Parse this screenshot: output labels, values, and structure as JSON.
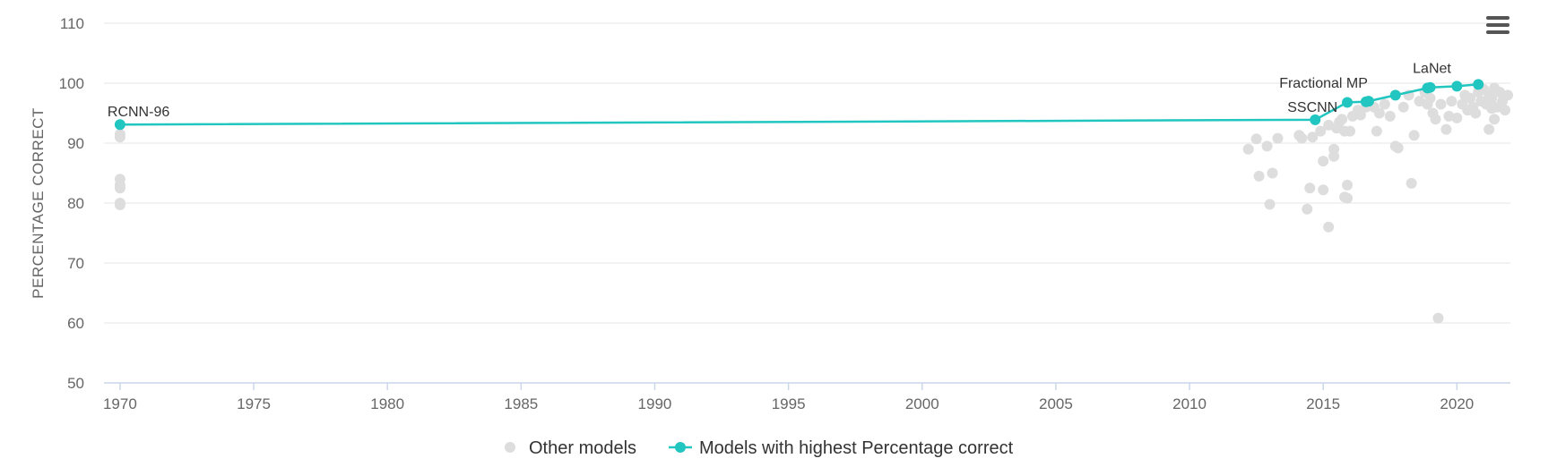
{
  "chart_data": {
    "type": "scatter",
    "xlabel": "",
    "ylabel": "PERCENTAGE CORRECT",
    "xlim": [
      1969.4,
      2022
    ],
    "ylim": [
      50,
      110
    ],
    "x_ticks": [
      "1970",
      "1975",
      "1980",
      "1985",
      "1990",
      "1995",
      "2000",
      "2005",
      "2010",
      "2015",
      "2020"
    ],
    "y_ticks": [
      "50",
      "60",
      "70",
      "80",
      "90",
      "100",
      "110"
    ],
    "grid": true,
    "legend_position": "bottom-center",
    "colors": {
      "other": "#dddddd",
      "best": "#20c6bf"
    },
    "series": [
      {
        "name": "Other models",
        "points": [
          [
            1970,
            91.5
          ],
          [
            1970,
            91
          ],
          [
            1970,
            84
          ],
          [
            1970,
            83
          ],
          [
            1970,
            82.5
          ],
          [
            1970,
            80
          ],
          [
            1970,
            79.7
          ],
          [
            2012.2,
            89
          ],
          [
            2012.5,
            90.7
          ],
          [
            2012.6,
            84.5
          ],
          [
            2012.9,
            89.5
          ],
          [
            2013.0,
            79.8
          ],
          [
            2013.1,
            85
          ],
          [
            2013.3,
            90.8
          ],
          [
            2014.1,
            91.3
          ],
          [
            2014.2,
            90.8
          ],
          [
            2014.4,
            79
          ],
          [
            2014.5,
            82.5
          ],
          [
            2014.6,
            91
          ],
          [
            2014.9,
            92
          ],
          [
            2015.0,
            87
          ],
          [
            2015.0,
            82.2
          ],
          [
            2015.2,
            93
          ],
          [
            2015.2,
            76
          ],
          [
            2015.4,
            89
          ],
          [
            2015.4,
            87.8
          ],
          [
            2015.5,
            92.5
          ],
          [
            2015.6,
            93.5
          ],
          [
            2015.7,
            94
          ],
          [
            2015.8,
            92
          ],
          [
            2015.8,
            81
          ],
          [
            2015.9,
            83
          ],
          [
            2015.9,
            80.8
          ],
          [
            2016.0,
            92
          ],
          [
            2016.1,
            94.5
          ],
          [
            2016.3,
            95.5
          ],
          [
            2016.4,
            94.7
          ],
          [
            2016.6,
            96
          ],
          [
            2016.9,
            96
          ],
          [
            2017.0,
            92
          ],
          [
            2017.1,
            95
          ],
          [
            2017.3,
            96.5
          ],
          [
            2017.5,
            94.5
          ],
          [
            2017.7,
            89.5
          ],
          [
            2017.8,
            89.2
          ],
          [
            2018.0,
            96
          ],
          [
            2018.2,
            98
          ],
          [
            2018.3,
            83.3
          ],
          [
            2018.4,
            91.3
          ],
          [
            2018.6,
            97
          ],
          [
            2018.8,
            98.5
          ],
          [
            2018.9,
            96.5
          ],
          [
            2019.0,
            97.5
          ],
          [
            2019.1,
            95
          ],
          [
            2019.2,
            94
          ],
          [
            2019.3,
            60.8
          ],
          [
            2019.4,
            96.5
          ],
          [
            2019.6,
            92.3
          ],
          [
            2019.7,
            94.5
          ],
          [
            2019.8,
            97
          ],
          [
            2020.0,
            94.2
          ],
          [
            2020.2,
            96.5
          ],
          [
            2020.3,
            98
          ],
          [
            2020.4,
            95.5
          ],
          [
            2020.5,
            97.5
          ],
          [
            2020.6,
            96
          ],
          [
            2020.7,
            95
          ],
          [
            2020.8,
            98.5
          ],
          [
            2020.9,
            97
          ],
          [
            2021.0,
            99
          ],
          [
            2021.1,
            96.5
          ],
          [
            2021.2,
            98
          ],
          [
            2021.3,
            95.8
          ],
          [
            2021.3,
            97.5
          ],
          [
            2021.4,
            99.2
          ],
          [
            2021.5,
            96
          ],
          [
            2021.6,
            98.5
          ],
          [
            2021.7,
            97
          ],
          [
            2021.8,
            95.5
          ],
          [
            2021.9,
            98
          ],
          [
            2021.2,
            92.3
          ],
          [
            2021.4,
            94
          ]
        ]
      },
      {
        "name": "Models with highest Percentage correct",
        "points": [
          [
            1970,
            93.1
          ],
          [
            2014.7,
            93.9
          ],
          [
            2015.9,
            96.8
          ],
          [
            2016.6,
            96.9
          ],
          [
            2016.7,
            97.0
          ],
          [
            2017.7,
            98.0
          ],
          [
            2018.9,
            99.2
          ],
          [
            2019.0,
            99.3
          ],
          [
            2020.0,
            99.5
          ],
          [
            2020.8,
            99.8
          ]
        ]
      }
    ],
    "annotations": [
      {
        "text": "RCNN-96",
        "x": 1970,
        "y": 93.1
      },
      {
        "text": "SSCNN",
        "x": 2014.7,
        "y": 93.9
      },
      {
        "text": "Fractional MP",
        "x": 2016.7,
        "y": 97.0
      },
      {
        "text": "LaNet",
        "x": 2019.0,
        "y": 99.3
      }
    ]
  },
  "menu": {
    "icon": "hamburger-menu-icon"
  }
}
